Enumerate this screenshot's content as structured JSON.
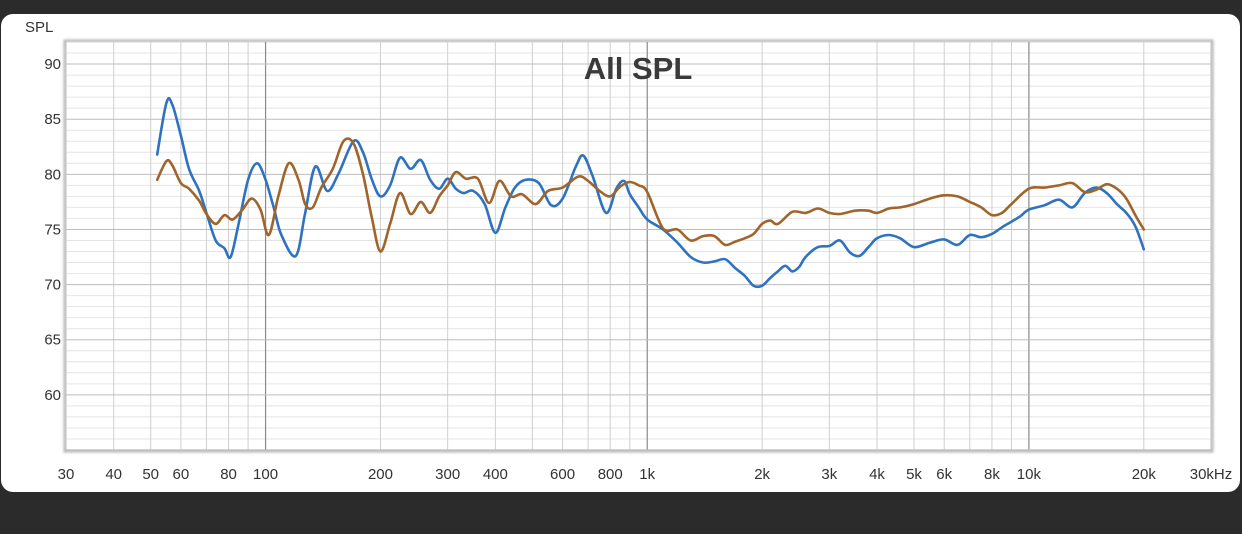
{
  "chart_data": {
    "type": "line",
    "title": "All SPL",
    "ylabel": "SPL",
    "xlabel": "",
    "xscale": "log",
    "xlim": [
      30,
      30000
    ],
    "ylim": [
      55,
      92
    ],
    "grid": true,
    "y_ticks": [
      {
        "value": 60,
        "label": "60"
      },
      {
        "value": 65,
        "label": "65"
      },
      {
        "value": 70,
        "label": "70"
      },
      {
        "value": 75,
        "label": "75"
      },
      {
        "value": 80,
        "label": "80"
      },
      {
        "value": 85,
        "label": "85"
      },
      {
        "value": 90,
        "label": "90"
      }
    ],
    "x_ticks": [
      {
        "value": 30,
        "label": "30"
      },
      {
        "value": 40,
        "label": "40"
      },
      {
        "value": 50,
        "label": "50"
      },
      {
        "value": 60,
        "label": "60"
      },
      {
        "value": 80,
        "label": "80"
      },
      {
        "value": 100,
        "label": "100"
      },
      {
        "value": 200,
        "label": "200"
      },
      {
        "value": 300,
        "label": "300"
      },
      {
        "value": 400,
        "label": "400"
      },
      {
        "value": 600,
        "label": "600"
      },
      {
        "value": 800,
        "label": "800"
      },
      {
        "value": 1000,
        "label": "1k"
      },
      {
        "value": 2000,
        "label": "2k"
      },
      {
        "value": 3000,
        "label": "3k"
      },
      {
        "value": 4000,
        "label": "4k"
      },
      {
        "value": 5000,
        "label": "5k"
      },
      {
        "value": 6000,
        "label": "6k"
      },
      {
        "value": 8000,
        "label": "8k"
      },
      {
        "value": 10000,
        "label": "10k"
      },
      {
        "value": 20000,
        "label": "20k"
      },
      {
        "value": 30000,
        "label": "30kHz"
      }
    ],
    "series": [
      {
        "color": "#2f72c0",
        "x": [
          52,
          55,
          57,
          60,
          63,
          67,
          70,
          74,
          78,
          81,
          85,
          90,
          95,
          100,
          105,
          110,
          120,
          127,
          135,
          145,
          155,
          170,
          180,
          190,
          200,
          212,
          225,
          240,
          255,
          270,
          285,
          300,
          315,
          330,
          350,
          375,
          400,
          425,
          450,
          480,
          520,
          560,
          600,
          650,
          680,
          720,
          780,
          830,
          870,
          900,
          950,
          1000,
          1100,
          1200,
          1300,
          1400,
          1500,
          1600,
          1700,
          1800,
          1900,
          2000,
          2100,
          2200,
          2300,
          2400,
          2500,
          2600,
          2800,
          3000,
          3200,
          3400,
          3600,
          3800,
          4000,
          4300,
          4600,
          5000,
          5500,
          6000,
          6500,
          7000,
          7500,
          8000,
          8500,
          9000,
          9500,
          10000,
          11000,
          12000,
          13000,
          14000,
          15000,
          16000,
          17000,
          18000,
          19000,
          20000
        ],
        "y": [
          81.8,
          86.5,
          86.3,
          83.5,
          80.5,
          78.5,
          76.5,
          74.0,
          73.3,
          72.5,
          75.5,
          79.5,
          81.0,
          79.5,
          77.0,
          74.5,
          72.6,
          76.5,
          80.7,
          78.5,
          80.0,
          83.0,
          82.0,
          79.5,
          78.0,
          79.0,
          81.5,
          80.5,
          81.3,
          79.5,
          78.7,
          79.6,
          78.7,
          78.3,
          78.5,
          77.3,
          74.7,
          77.0,
          78.8,
          79.5,
          79.2,
          77.2,
          77.8,
          80.7,
          81.7,
          79.8,
          76.5,
          78.7,
          79.4,
          78.2,
          77.0,
          75.9,
          75.0,
          73.8,
          72.5,
          72.0,
          72.1,
          72.3,
          71.5,
          70.8,
          69.9,
          69.9,
          70.6,
          71.2,
          71.7,
          71.2,
          71.6,
          72.5,
          73.4,
          73.5,
          74.0,
          72.9,
          72.6,
          73.4,
          74.2,
          74.5,
          74.2,
          73.4,
          73.8,
          74.1,
          73.6,
          74.5,
          74.3,
          74.6,
          75.2,
          75.7,
          76.2,
          76.8,
          77.2,
          77.7,
          77.0,
          78.3,
          78.8,
          78.3,
          77.3,
          76.5,
          75.3,
          73.2
        ]
      },
      {
        "color": "#a0652c",
        "x": [
          52,
          55,
          57,
          60,
          63,
          67,
          70,
          74,
          78,
          82,
          87,
          92,
          97,
          102,
          108,
          115,
          122,
          127,
          133,
          140,
          150,
          160,
          170,
          180,
          190,
          200,
          212,
          225,
          240,
          255,
          270,
          285,
          300,
          315,
          335,
          360,
          385,
          410,
          440,
          470,
          510,
          550,
          600,
          660,
          700,
          750,
          800,
          850,
          900,
          950,
          1000,
          1100,
          1200,
          1300,
          1400,
          1500,
          1600,
          1700,
          1800,
          1900,
          2000,
          2100,
          2200,
          2400,
          2600,
          2800,
          3000,
          3200,
          3500,
          3800,
          4000,
          4300,
          4600,
          5000,
          5500,
          6000,
          6500,
          7000,
          7500,
          8000,
          8500,
          9000,
          10000,
          11000,
          12000,
          13000,
          14000,
          15000,
          16000,
          17000,
          18000,
          19000,
          20000
        ],
        "y": [
          79.5,
          81.2,
          80.8,
          79.2,
          78.7,
          77.6,
          76.4,
          75.5,
          76.3,
          75.9,
          76.8,
          77.8,
          76.8,
          74.5,
          78.0,
          81.0,
          79.5,
          77.3,
          77.0,
          78.8,
          80.5,
          83.0,
          82.8,
          80.0,
          76.0,
          73.0,
          75.5,
          78.3,
          76.4,
          77.5,
          76.5,
          78.0,
          79.0,
          80.2,
          79.6,
          79.6,
          77.4,
          79.4,
          78.0,
          78.2,
          77.3,
          78.5,
          78.8,
          79.8,
          79.4,
          78.5,
          78.0,
          78.9,
          79.3,
          79.0,
          78.4,
          75.1,
          75.0,
          74.0,
          74.4,
          74.4,
          73.6,
          73.9,
          74.2,
          74.6,
          75.5,
          75.8,
          75.5,
          76.6,
          76.5,
          76.9,
          76.5,
          76.4,
          76.7,
          76.7,
          76.5,
          76.9,
          77.0,
          77.3,
          77.8,
          78.1,
          78.0,
          77.5,
          77.0,
          76.3,
          76.5,
          77.3,
          78.7,
          78.8,
          79.0,
          79.2,
          78.4,
          78.6,
          79.1,
          78.7,
          77.8,
          76.3,
          75.0
        ]
      }
    ]
  }
}
